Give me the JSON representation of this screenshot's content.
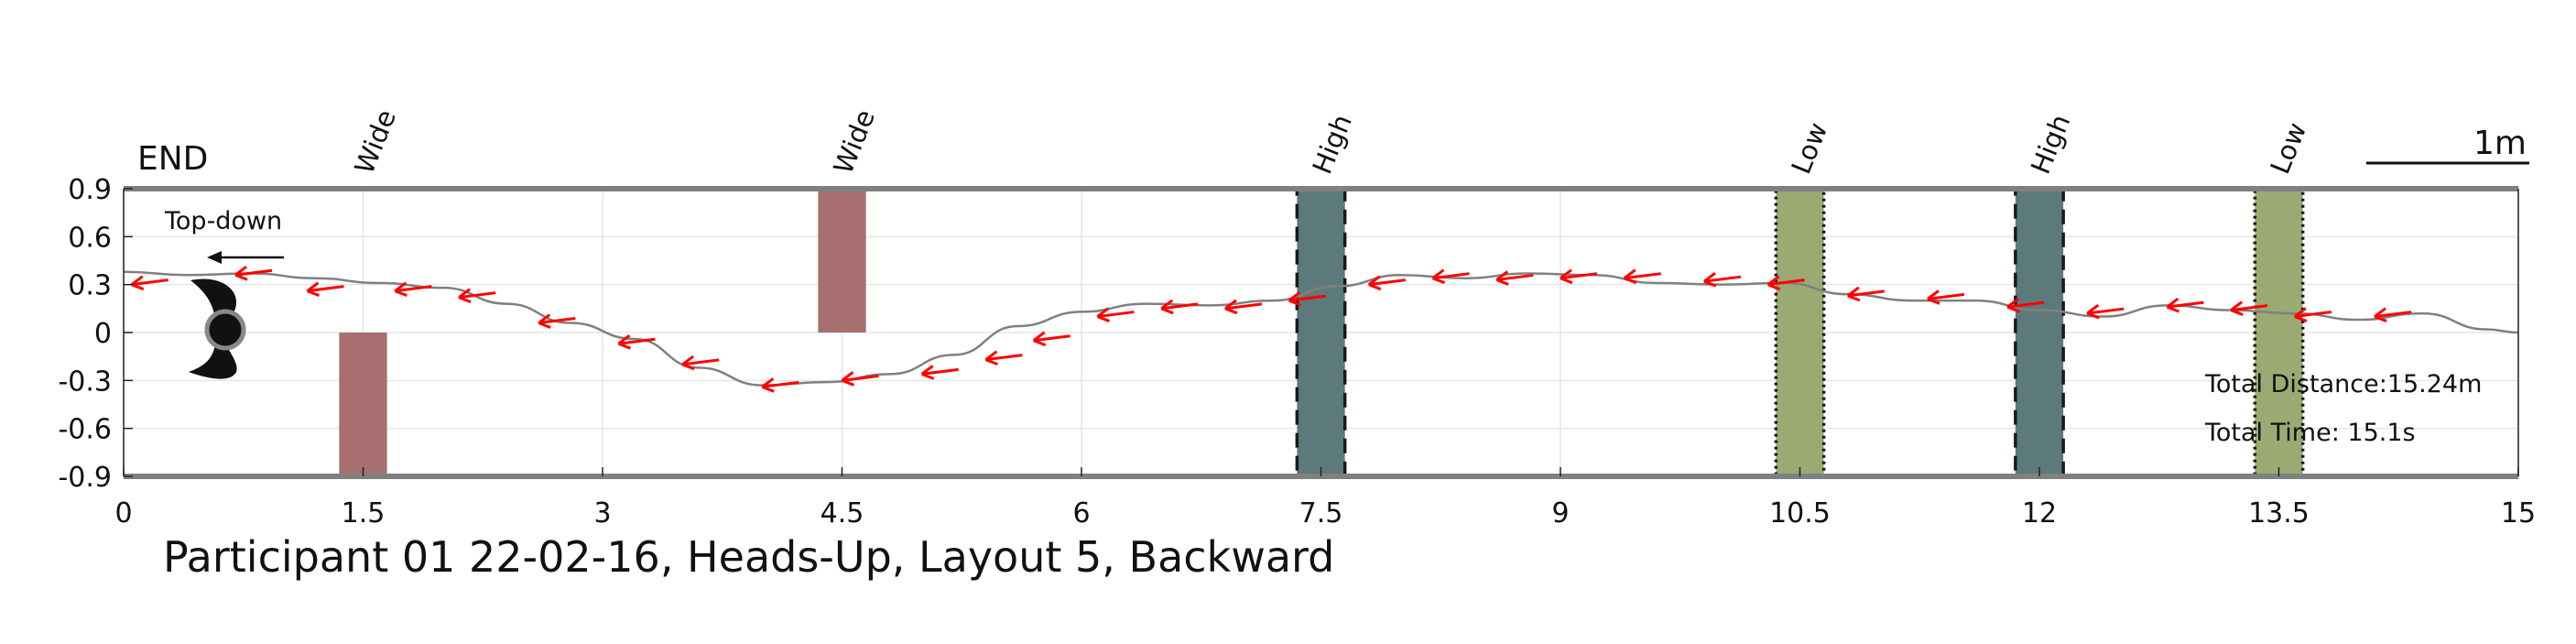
{
  "chart_data": {
    "type": "line",
    "title": "Participant 01 22-02-16, Heads-Up, Layout 5, Backward",
    "xlabel": "",
    "ylabel": "",
    "xlim": [
      0,
      15
    ],
    "ylim": [
      -0.9,
      0.9
    ],
    "xticks": [
      "0",
      "1.5",
      "3",
      "4.5",
      "6",
      "7.5",
      "9",
      "10.5",
      "12",
      "13.5",
      "15"
    ],
    "yticks": [
      "0.9",
      "0.6",
      "0.3",
      "0",
      "-0.3",
      "-0.6",
      "-0.9"
    ],
    "grid": true,
    "end_label": "END",
    "view_label": "Top-down",
    "scale_bar_label": "1m",
    "scale_bar_length": 1,
    "total_distance": "Total Distance:15.24m",
    "total_time": "Total Time: 15.1s",
    "path": {
      "x": [
        0,
        0.4,
        0.8,
        1.2,
        1.6,
        2.0,
        2.4,
        2.8,
        3.2,
        3.6,
        4.0,
        4.4,
        4.8,
        5.2,
        5.6,
        6.0,
        6.4,
        6.8,
        7.2,
        7.6,
        8.0,
        8.4,
        8.8,
        9.2,
        9.6,
        10.0,
        10.4,
        10.8,
        11.2,
        11.6,
        12.0,
        12.4,
        12.8,
        13.2,
        13.6,
        14.0,
        14.4,
        14.8,
        15.0
      ],
      "y": [
        0.38,
        0.36,
        0.37,
        0.34,
        0.31,
        0.28,
        0.18,
        0.06,
        -0.04,
        -0.22,
        -0.33,
        -0.31,
        -0.26,
        -0.14,
        0.04,
        0.13,
        0.18,
        0.17,
        0.2,
        0.29,
        0.36,
        0.34,
        0.37,
        0.36,
        0.31,
        0.3,
        0.31,
        0.24,
        0.2,
        0.2,
        0.14,
        0.1,
        0.17,
        0.14,
        0.12,
        0.08,
        0.12,
        0.02,
        0.0
      ]
    },
    "heading_arrows": {
      "x": [
        0.05,
        0.7,
        1.15,
        1.7,
        2.1,
        2.6,
        3.1,
        3.5,
        4.0,
        4.5,
        5.0,
        5.4,
        5.7,
        6.1,
        6.5,
        6.9,
        7.3,
        7.8,
        8.2,
        8.6,
        9.0,
        9.4,
        9.9,
        10.3,
        10.8,
        11.3,
        11.8,
        12.3,
        12.8,
        13.2,
        13.6,
        14.1
      ],
      "y": [
        0.3,
        0.36,
        0.26,
        0.26,
        0.22,
        0.06,
        -0.07,
        -0.2,
        -0.34,
        -0.3,
        -0.26,
        -0.17,
        -0.05,
        0.1,
        0.15,
        0.15,
        0.2,
        0.3,
        0.34,
        0.33,
        0.34,
        0.34,
        0.32,
        0.3,
        0.23,
        0.21,
        0.16,
        0.12,
        0.16,
        0.14,
        0.1,
        0.1
      ]
    },
    "obstacles": [
      {
        "label": "Wide",
        "x_from": 1.35,
        "x_to": 1.65,
        "y_from": -0.9,
        "y_to": 0,
        "style": "wide"
      },
      {
        "label": "Wide",
        "x_from": 4.35,
        "x_to": 4.65,
        "y_from": 0,
        "y_to": 0.9,
        "style": "wide"
      },
      {
        "label": "High",
        "x_from": 7.35,
        "x_to": 7.65,
        "y_from": -0.9,
        "y_to": 0.9,
        "style": "high"
      },
      {
        "label": "Low",
        "x_from": 10.35,
        "x_to": 10.65,
        "y_from": -0.9,
        "y_to": 0.9,
        "style": "low"
      },
      {
        "label": "High",
        "x_from": 11.85,
        "x_to": 12.15,
        "y_from": -0.9,
        "y_to": 0.9,
        "style": "high"
      },
      {
        "label": "Low",
        "x_from": 13.35,
        "x_to": 13.65,
        "y_from": -0.9,
        "y_to": 0.9,
        "style": "low"
      }
    ],
    "colors": {
      "path": "#808080",
      "arrow": "#ff0000",
      "wide": "#a86f70",
      "high": "#5c7a7c",
      "low": "#9aaa72",
      "grid": "#e6e6e6",
      "axis": "#808080"
    }
  }
}
